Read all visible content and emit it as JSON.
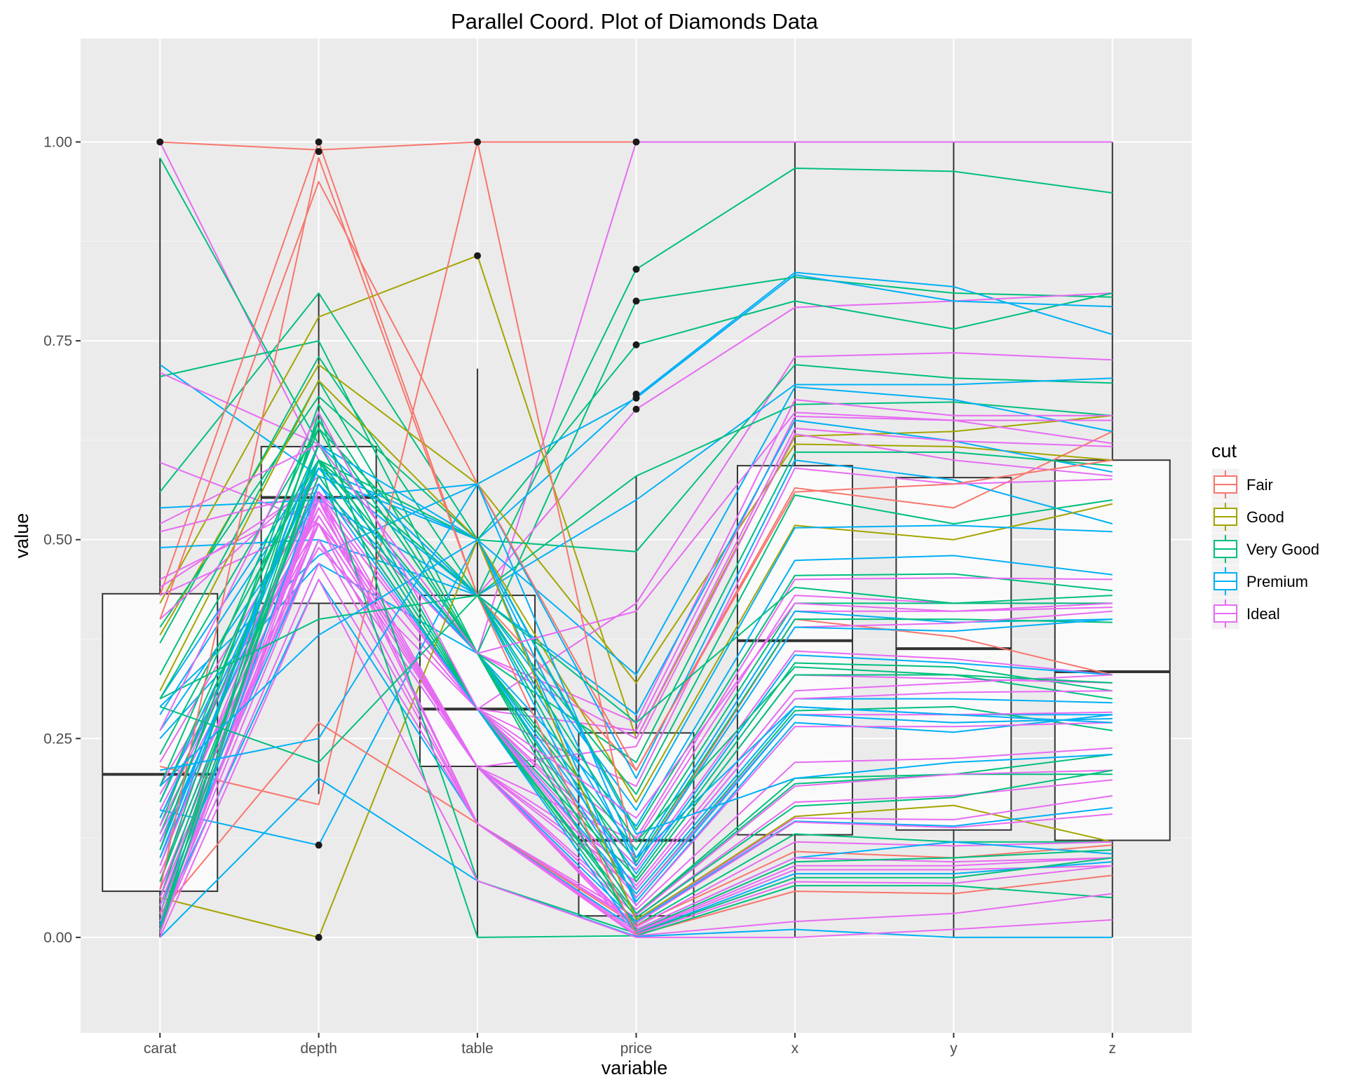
{
  "chart_data": {
    "type": "parallel-coordinates",
    "title": "Parallel Coord. Plot of Diamonds Data",
    "xlabel": "variable",
    "ylabel": "value",
    "categories": [
      "carat",
      "depth",
      "table",
      "price",
      "x",
      "y",
      "z"
    ],
    "ylim": [
      -0.12,
      1.13
    ],
    "yticks": [
      0.0,
      0.25,
      0.5,
      0.75,
      1.0
    ],
    "ytick_labels": [
      "0.00",
      "0.25",
      "0.50",
      "0.75",
      "1.00"
    ],
    "background": "#ebebeb",
    "grid": true,
    "legend": {
      "title": "cut",
      "placement": "right",
      "entries": [
        {
          "name": "Fair",
          "color": "#F8766D"
        },
        {
          "name": "Good",
          "color": "#A3A500"
        },
        {
          "name": "Very Good",
          "color": "#00BF7D"
        },
        {
          "name": "Premium",
          "color": "#00B0F6"
        },
        {
          "name": "Ideal",
          "color": "#E76BF3"
        }
      ]
    },
    "boxplots": [
      {
        "variable": "carat",
        "whisker_low": 0.0,
        "q1": 0.058,
        "median": 0.205,
        "q3": 0.432,
        "whisker_high": 0.98
      },
      {
        "variable": "depth",
        "whisker_low": 0.18,
        "q1": 0.42,
        "median": 0.553,
        "q3": 0.617,
        "whisker_high": 0.81
      },
      {
        "variable": "table",
        "whisker_low": 0.0,
        "q1": 0.215,
        "median": 0.287,
        "q3": 0.43,
        "whisker_high": 0.715
      },
      {
        "variable": "price",
        "whisker_low": 0.0,
        "q1": 0.027,
        "median": 0.122,
        "q3": 0.257,
        "whisker_high": 0.58
      },
      {
        "variable": "x",
        "whisker_low": 0.0,
        "q1": 0.129,
        "median": 0.373,
        "q3": 0.593,
        "whisker_high": 1.0
      },
      {
        "variable": "y",
        "whisker_low": 0.0,
        "q1": 0.135,
        "median": 0.363,
        "q3": 0.578,
        "whisker_high": 1.0
      },
      {
        "variable": "z",
        "whisker_low": 0.0,
        "q1": 0.122,
        "median": 0.334,
        "q3": 0.6,
        "whisker_high": 1.0
      }
    ],
    "outliers": [
      {
        "variable": "carat",
        "value": 1.0
      },
      {
        "variable": "depth",
        "value": 1.0
      },
      {
        "variable": "depth",
        "value": 0.988
      },
      {
        "variable": "depth",
        "value": 0.116
      },
      {
        "variable": "depth",
        "value": 0.0
      },
      {
        "variable": "table",
        "value": 1.0
      },
      {
        "variable": "table",
        "value": 0.857
      },
      {
        "variable": "price",
        "value": 1.0
      },
      {
        "variable": "price",
        "value": 0.84
      },
      {
        "variable": "price",
        "value": 0.8
      },
      {
        "variable": "price",
        "value": 0.745
      },
      {
        "variable": "price",
        "value": 0.683
      },
      {
        "variable": "price",
        "value": 0.678
      },
      {
        "variable": "price",
        "value": 0.664
      }
    ],
    "series": [
      {
        "cut": "Fair",
        "values": [
          1.0,
          0.99,
          1.0,
          1.0,
          1.0,
          1.0,
          1.0
        ]
      },
      {
        "cut": "Ideal",
        "values": [
          1.0,
          0.6,
          0.357,
          1.0,
          1.0,
          1.0,
          1.0
        ]
      },
      {
        "cut": "Very Good",
        "values": [
          0.98,
          0.62,
          0.43,
          0.84,
          0.967,
          0.963,
          0.936
        ]
      },
      {
        "cut": "Premium",
        "values": [
          0.72,
          0.58,
          0.5,
          0.68,
          0.836,
          0.818,
          0.758
        ]
      },
      {
        "cut": "Very Good",
        "values": [
          0.705,
          0.75,
          0.357,
          0.8,
          0.83,
          0.81,
          0.805
        ]
      },
      {
        "cut": "Ideal",
        "values": [
          0.71,
          0.62,
          0.43,
          0.664,
          0.792,
          0.8,
          0.81
        ]
      },
      {
        "cut": "Very Good",
        "values": [
          0.56,
          0.81,
          0.5,
          0.745,
          0.8,
          0.765,
          0.81
        ]
      },
      {
        "cut": "Premium",
        "values": [
          0.54,
          0.55,
          0.57,
          0.678,
          0.833,
          0.8,
          0.793
        ]
      },
      {
        "cut": "Fair",
        "values": [
          0.43,
          1.0,
          0.43,
          0.21,
          0.565,
          0.54,
          0.636
        ]
      },
      {
        "cut": "Good",
        "values": [
          0.42,
          0.78,
          0.857,
          0.25,
          0.63,
          0.636,
          0.656
        ]
      },
      {
        "cut": "Good",
        "values": [
          0.38,
          0.72,
          0.57,
          0.32,
          0.62,
          0.617,
          0.6
        ]
      },
      {
        "cut": "Ideal",
        "values": [
          0.597,
          0.52,
          0.287,
          0.42,
          0.73,
          0.735,
          0.726
        ]
      },
      {
        "cut": "Very Good",
        "values": [
          0.39,
          0.68,
          0.5,
          0.485,
          0.72,
          0.703,
          0.697
        ]
      },
      {
        "cut": "Premium",
        "values": [
          0.49,
          0.5,
          0.43,
          0.55,
          0.695,
          0.695,
          0.703
        ]
      },
      {
        "cut": "Very Good",
        "values": [
          0.37,
          0.73,
          0.43,
          0.58,
          0.67,
          0.673,
          0.656
        ]
      },
      {
        "cut": "Premium",
        "values": [
          0.28,
          0.59,
          0.5,
          0.33,
          0.692,
          0.676,
          0.636
        ]
      },
      {
        "cut": "Ideal",
        "values": [
          0.51,
          0.56,
          0.357,
          0.27,
          0.676,
          0.656,
          0.656
        ]
      },
      {
        "cut": "Ideal",
        "values": [
          0.45,
          0.55,
          0.287,
          0.26,
          0.655,
          0.65,
          0.621
        ]
      },
      {
        "cut": "Premium",
        "values": [
          0.3,
          0.6,
          0.43,
          0.28,
          0.65,
          0.624,
          0.585
        ]
      },
      {
        "cut": "Ideal",
        "values": [
          0.44,
          0.57,
          0.357,
          0.25,
          0.64,
          0.624,
          0.617
        ]
      },
      {
        "cut": "Ideal",
        "values": [
          0.43,
          0.52,
          0.214,
          0.24,
          0.633,
          0.6,
          0.58
        ]
      },
      {
        "cut": "Very Good",
        "values": [
          0.33,
          0.7,
          0.357,
          0.22,
          0.61,
          0.61,
          0.593
        ]
      },
      {
        "cut": "Premium",
        "values": [
          0.29,
          0.48,
          0.57,
          0.2,
          0.6,
          0.575,
          0.52
        ]
      },
      {
        "cut": "Ideal",
        "values": [
          0.4,
          0.58,
          0.287,
          0.19,
          0.59,
          0.57,
          0.576
        ]
      },
      {
        "cut": "Fair",
        "values": [
          0.4,
          0.95,
          0.57,
          0.21,
          0.56,
          0.57,
          0.6
        ]
      },
      {
        "cut": "Very Good",
        "values": [
          0.3,
          0.64,
          0.43,
          0.18,
          0.556,
          0.52,
          0.55
        ]
      },
      {
        "cut": "Good",
        "values": [
          0.31,
          0.7,
          0.5,
          0.17,
          0.518,
          0.5,
          0.545
        ]
      },
      {
        "cut": "Premium",
        "values": [
          0.26,
          0.55,
          0.43,
          0.16,
          0.515,
          0.518,
          0.51
        ]
      },
      {
        "cut": "Premium",
        "values": [
          0.25,
          0.47,
          0.357,
          0.14,
          0.474,
          0.48,
          0.456
        ]
      },
      {
        "cut": "Very Good",
        "values": [
          0.23,
          0.6,
          0.5,
          0.135,
          0.455,
          0.457,
          0.436
        ]
      },
      {
        "cut": "Ideal",
        "values": [
          0.22,
          0.56,
          0.287,
          0.125,
          0.45,
          0.452,
          0.45
        ]
      },
      {
        "cut": "Ideal",
        "values": [
          0.19,
          0.53,
          0.214,
          0.12,
          0.43,
          0.42,
          0.42
        ]
      },
      {
        "cut": "Very Good",
        "values": [
          0.19,
          0.65,
          0.357,
          0.11,
          0.42,
          0.42,
          0.43
        ]
      },
      {
        "cut": "Ideal",
        "values": [
          0.18,
          0.52,
          0.287,
          0.1,
          0.41,
          0.41,
          0.415
        ]
      },
      {
        "cut": "Premium",
        "values": [
          0.17,
          0.59,
          0.43,
          0.1,
          0.41,
          0.396,
          0.4
        ]
      },
      {
        "cut": "Fair",
        "values": [
          0.215,
          0.167,
          1.0,
          0.09,
          0.4,
          0.378,
          0.33
        ]
      },
      {
        "cut": "Very Good",
        "values": [
          0.17,
          0.62,
          0.357,
          0.095,
          0.4,
          0.4,
          0.396
        ]
      },
      {
        "cut": "Ideal",
        "values": [
          0.16,
          0.55,
          0.287,
          0.09,
          0.39,
          0.395,
          0.41
        ]
      },
      {
        "cut": "Premium",
        "values": [
          0.16,
          0.116,
          0.5,
          0.09,
          0.39,
          0.385,
          0.4
        ]
      },
      {
        "cut": "Ideal",
        "values": [
          0.15,
          0.56,
          0.214,
          0.085,
          0.36,
          0.35,
          0.33
        ]
      },
      {
        "cut": "Premium",
        "values": [
          0.15,
          0.59,
          0.357,
          0.08,
          0.355,
          0.345,
          0.33
        ]
      },
      {
        "cut": "Very Good",
        "values": [
          0.14,
          0.64,
          0.287,
          0.075,
          0.345,
          0.34,
          0.31
        ]
      },
      {
        "cut": "Ideal",
        "values": [
          0.14,
          0.54,
          0.214,
          0.07,
          0.33,
          0.325,
          0.32
        ]
      },
      {
        "cut": "Very Good",
        "values": [
          0.13,
          0.6,
          0.43,
          0.07,
          0.33,
          0.33,
          0.3
        ]
      },
      {
        "cut": "Ideal",
        "values": [
          0.13,
          0.49,
          0.287,
          0.065,
          0.31,
          0.32,
          0.33
        ]
      },
      {
        "cut": "Premium",
        "values": [
          0.12,
          0.57,
          0.357,
          0.06,
          0.3,
          0.3,
          0.295
        ]
      },
      {
        "cut": "Ideal",
        "values": [
          0.12,
          0.52,
          0.214,
          0.06,
          0.3,
          0.308,
          0.31
        ]
      },
      {
        "cut": "Premium",
        "values": [
          0.11,
          0.6,
          0.287,
          0.055,
          0.29,
          0.28,
          0.28
        ]
      },
      {
        "cut": "Very Good",
        "values": [
          0.11,
          0.67,
          0.357,
          0.05,
          0.285,
          0.29,
          0.26
        ]
      },
      {
        "cut": "Ideal",
        "values": [
          0.1,
          0.55,
          0.287,
          0.05,
          0.28,
          0.28,
          0.283
        ]
      },
      {
        "cut": "Premium",
        "values": [
          0.1,
          0.62,
          0.43,
          0.045,
          0.28,
          0.27,
          0.275
        ]
      },
      {
        "cut": "Premium",
        "values": [
          0.09,
          0.62,
          0.5,
          0.04,
          0.27,
          0.258,
          0.28
        ]
      },
      {
        "cut": "Ideal",
        "values": [
          0.09,
          0.58,
          0.287,
          0.04,
          0.265,
          0.265,
          0.27
        ]
      },
      {
        "cut": "Ideal",
        "values": [
          0.08,
          0.54,
          0.214,
          0.035,
          0.22,
          0.225,
          0.238
        ]
      },
      {
        "cut": "Very Good",
        "values": [
          0.07,
          0.65,
          0.357,
          0.03,
          0.2,
          0.205,
          0.205
        ]
      },
      {
        "cut": "Very Good",
        "values": [
          0.07,
          0.58,
          0.287,
          0.03,
          0.193,
          0.205,
          0.23
        ]
      },
      {
        "cut": "Ideal",
        "values": [
          0.06,
          0.55,
          0.214,
          0.028,
          0.19,
          0.205,
          0.21
        ]
      },
      {
        "cut": "Ideal",
        "values": [
          0.06,
          0.5,
          0.143,
          0.025,
          0.17,
          0.178,
          0.198
        ]
      },
      {
        "cut": "Very Good",
        "values": [
          0.05,
          0.6,
          0.287,
          0.025,
          0.165,
          0.176,
          0.21
        ]
      },
      {
        "cut": "Good",
        "values": [
          0.05,
          0.0,
          0.5,
          0.022,
          0.152,
          0.166,
          0.12
        ]
      },
      {
        "cut": "Ideal",
        "values": [
          0.05,
          0.52,
          0.143,
          0.02,
          0.15,
          0.148,
          0.178
        ]
      },
      {
        "cut": "Premium",
        "values": [
          0.04,
          0.5,
          0.214,
          0.02,
          0.146,
          0.14,
          0.163
        ]
      },
      {
        "cut": "Ideal",
        "values": [
          0.04,
          0.56,
          0.143,
          0.018,
          0.145,
          0.138,
          0.155
        ]
      },
      {
        "cut": "Very Good",
        "values": [
          0.03,
          0.62,
          0.287,
          0.015,
          0.13,
          0.12,
          0.12
        ]
      },
      {
        "cut": "Fair",
        "values": [
          0.03,
          0.27,
          0.143,
          0.015,
          0.108,
          0.1,
          0.116
        ]
      },
      {
        "cut": "Ideal",
        "values": [
          0.03,
          0.55,
          0.214,
          0.013,
          0.12,
          0.115,
          0.12
        ]
      },
      {
        "cut": "Premium",
        "values": [
          0.02,
          0.45,
          0.143,
          0.01,
          0.1,
          0.12,
          0.105
        ]
      },
      {
        "cut": "Ideal",
        "values": [
          0.02,
          0.53,
          0.214,
          0.01,
          0.1,
          0.095,
          0.1
        ]
      },
      {
        "cut": "Very Good",
        "values": [
          0.02,
          0.6,
          0.357,
          0.008,
          0.095,
          0.1,
          0.11
        ]
      },
      {
        "cut": "Ideal",
        "values": [
          0.02,
          0.52,
          0.143,
          0.007,
          0.09,
          0.09,
          0.1
        ]
      },
      {
        "cut": "Ideal",
        "values": [
          0.015,
          0.5,
          0.214,
          0.006,
          0.085,
          0.085,
          0.09
        ]
      },
      {
        "cut": "Premium",
        "values": [
          0.015,
          0.57,
          0.287,
          0.005,
          0.08,
          0.08,
          0.095
        ]
      },
      {
        "cut": "Very Good",
        "values": [
          0.01,
          0.66,
          0.071,
          0.005,
          0.075,
          0.075,
          0.1
        ]
      },
      {
        "cut": "Ideal",
        "values": [
          0.01,
          0.47,
          0.143,
          0.004,
          0.07,
          0.068,
          0.09
        ]
      },
      {
        "cut": "Fair",
        "values": [
          0.06,
          0.98,
          0.43,
          0.003,
          0.058,
          0.055,
          0.078
        ]
      },
      {
        "cut": "Very Good",
        "values": [
          0.008,
          0.6,
          0.0,
          0.002,
          0.065,
          0.065,
          0.05
        ]
      },
      {
        "cut": "Ideal",
        "values": [
          0.005,
          0.55,
          0.143,
          0.002,
          0.02,
          0.03,
          0.055
        ]
      },
      {
        "cut": "Premium",
        "values": [
          0.0,
          0.2,
          0.071,
          0.001,
          0.01,
          0.0,
          0.0
        ]
      },
      {
        "cut": "Ideal",
        "values": [
          0.0,
          0.45,
          0.071,
          0.0,
          0.0,
          0.01,
          0.022
        ]
      },
      {
        "cut": "Very Good",
        "values": [
          0.3,
          0.4,
          0.43,
          0.27,
          0.44,
          0.42,
          0.42
        ]
      },
      {
        "cut": "Premium",
        "values": [
          0.19,
          0.38,
          0.5,
          0.13,
          0.2,
          0.22,
          0.23
        ]
      },
      {
        "cut": "Ideal",
        "values": [
          0.52,
          0.62,
          0.357,
          0.41,
          0.66,
          0.65,
          0.65
        ]
      },
      {
        "cut": "Very Good",
        "values": [
          0.29,
          0.22,
          0.43,
          0.12,
          0.34,
          0.33,
          0.32
        ]
      },
      {
        "cut": "Premium",
        "values": [
          0.21,
          0.25,
          0.57,
          0.1,
          0.29,
          0.28,
          0.27
        ]
      },
      {
        "cut": "Ideal",
        "values": [
          0.26,
          0.66,
          0.287,
          0.15,
          0.42,
          0.41,
          0.42
        ]
      }
    ]
  }
}
